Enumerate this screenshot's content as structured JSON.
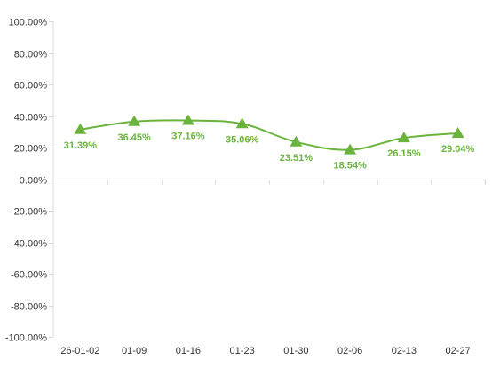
{
  "chart_data": {
    "type": "line",
    "title": "",
    "xlabel": "",
    "ylabel": "",
    "categories": [
      "26-01-02",
      "01-09",
      "01-16",
      "01-23",
      "01-30",
      "02-06",
      "02-13",
      "02-27"
    ],
    "series": [
      {
        "values": [
          31.39,
          36.45,
          37.16,
          35.06,
          23.51,
          18.54,
          26.15,
          29.04
        ],
        "data_labels": [
          "31.39%",
          "36.45%",
          "37.16%",
          "35.06%",
          "23.51%",
          "18.54%",
          "26.15%",
          "29.04%"
        ],
        "marker": "triangle",
        "smooth": true
      }
    ],
    "ylim": [
      -100,
      100
    ],
    "y_ticks": [
      100,
      80,
      60,
      40,
      20,
      0,
      -20,
      -40,
      -60,
      -80,
      -100
    ],
    "y_tick_labels": [
      "100.00%",
      "80.00%",
      "60.00%",
      "40.00%",
      "20.00%",
      "0.00%",
      "-20.00%",
      "-40.00%",
      "-60.00%",
      "-80.00%",
      "-100.00%"
    ],
    "grid": false,
    "legend": "none",
    "colors": {
      "line": "#6ab43e",
      "label": "#6ab43e",
      "axis": "#d9d9d9",
      "text": "#333333"
    }
  }
}
